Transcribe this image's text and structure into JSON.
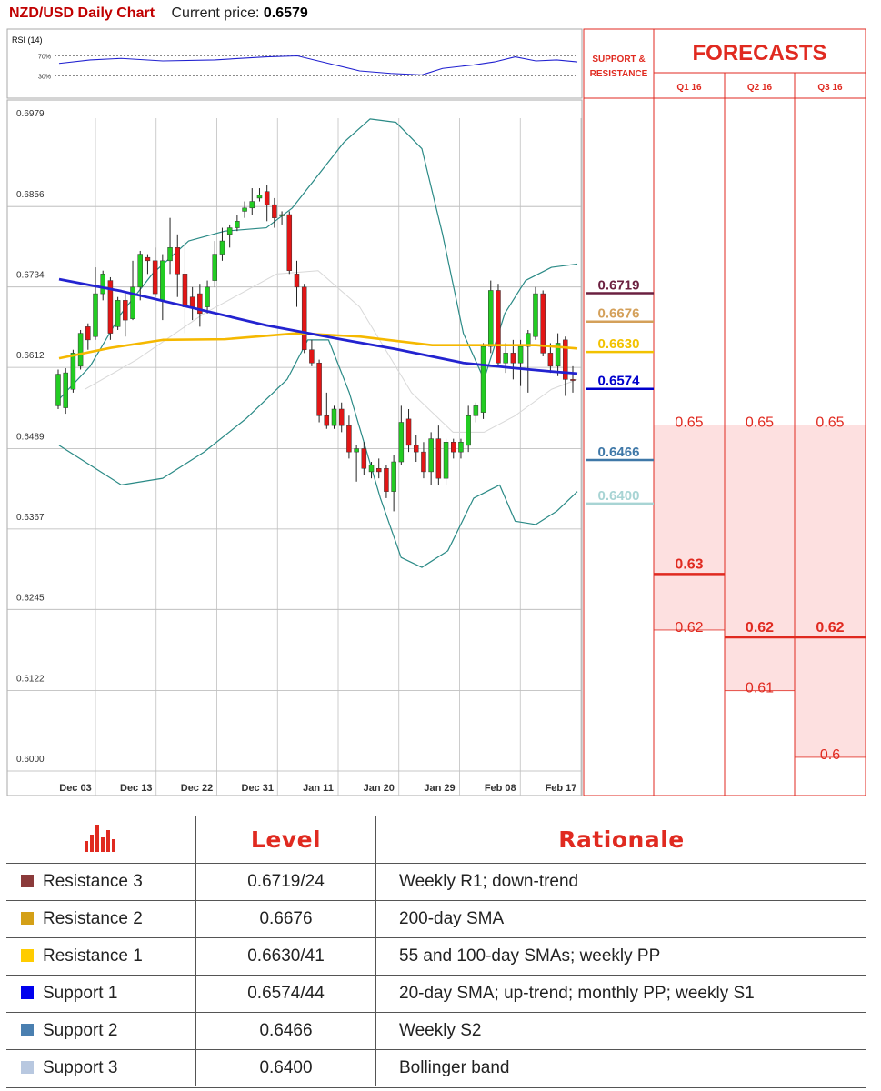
{
  "header": {
    "title": "NZD/USD Daily Chart",
    "price_label": "Current price:",
    "price_value": "0.6579"
  },
  "rsi": {
    "label": "RSI (14)",
    "upper_label": "70%",
    "lower_label": "30%"
  },
  "forecast_panel": {
    "sr_title_1": "SUPPORT &",
    "sr_title_2": "RESISTANCE",
    "title": "FORECASTS",
    "quarters": [
      "Q1 16",
      "Q2 16",
      "Q3 16"
    ]
  },
  "sr_levels": [
    {
      "name": "Resistance 3",
      "value": "0.6719",
      "num": 0.6719,
      "color": "#6b2040"
    },
    {
      "name": "Resistance 2",
      "value": "0.6676",
      "num": 0.6676,
      "color": "#d4a05a"
    },
    {
      "name": "Resistance 1",
      "value": "0.6630",
      "num": 0.663,
      "color": "#f2c200"
    },
    {
      "name": "Support 1",
      "value": "0.6574",
      "num": 0.6574,
      "color": "#0000cc"
    },
    {
      "name": "Support 2",
      "value": "0.6466",
      "num": 0.6466,
      "color": "#3f78a8"
    },
    {
      "name": "Support 3",
      "value": "0.6400",
      "num": 0.64,
      "color": "#a8d4d4"
    }
  ],
  "forecasts": [
    {
      "quarter": "Q1 16",
      "labels": [
        {
          "text": "0.65",
          "level": 0.6511,
          "bold": false
        },
        {
          "text": "0.63",
          "level": 0.6296,
          "bold": true
        },
        {
          "text": "0.62",
          "level": 0.62,
          "bold": false
        }
      ]
    },
    {
      "quarter": "Q2 16",
      "labels": [
        {
          "text": "0.65",
          "level": 0.6511,
          "bold": false
        },
        {
          "text": "0.62",
          "level": 0.62,
          "bold": true
        },
        {
          "text": "0.61",
          "level": 0.6108,
          "bold": false
        }
      ]
    },
    {
      "quarter": "Q3 16",
      "labels": [
        {
          "text": "0.65",
          "level": 0.6511,
          "bold": false
        },
        {
          "text": "0.62",
          "level": 0.62,
          "bold": true
        },
        {
          "text": "0.6",
          "level": 0.6007,
          "bold": false
        }
      ]
    }
  ],
  "forecast_boxes": [
    {
      "top": 0.6511,
      "bottom": 0.62,
      "mid": 0.6296
    },
    {
      "top": 0.6511,
      "bottom": 0.6108,
      "mid": 0.62
    },
    {
      "top": 0.6511,
      "bottom": 0.6007,
      "mid": 0.62
    }
  ],
  "chart_data": {
    "type": "candlestick",
    "title": "NZD/USD Daily Chart",
    "x_ticks": [
      "Dec 03",
      "Dec 13",
      "Dec 22",
      "Dec 31",
      "Jan 11",
      "Jan 20",
      "Jan 29",
      "Feb 08",
      "Feb 17"
    ],
    "y_ticks": [
      "0.6979",
      "0.6856",
      "0.6734",
      "0.6612",
      "0.6489",
      "0.6367",
      "0.6245",
      "0.6122",
      "0.6000"
    ],
    "ylim": [
      0.6,
      0.6979
    ],
    "grid": true,
    "candles": [
      [
        0.654,
        0.6588,
        0.6535,
        0.6595
      ],
      [
        0.6537,
        0.659,
        0.6528,
        0.6597
      ],
      [
        0.6565,
        0.662,
        0.656,
        0.6625
      ],
      [
        0.66,
        0.665,
        0.6595,
        0.6655
      ],
      [
        0.666,
        0.664,
        0.6625,
        0.6665
      ],
      [
        0.6645,
        0.671,
        0.664,
        0.675
      ],
      [
        0.671,
        0.674,
        0.67,
        0.6745
      ],
      [
        0.673,
        0.665,
        0.664,
        0.6735
      ],
      [
        0.666,
        0.67,
        0.6655,
        0.6705
      ],
      [
        0.67,
        0.667,
        0.6645,
        0.671
      ],
      [
        0.6672,
        0.672,
        0.667,
        0.676
      ],
      [
        0.672,
        0.677,
        0.67,
        0.6775
      ],
      [
        0.6765,
        0.676,
        0.674,
        0.677
      ],
      [
        0.676,
        0.671,
        0.6705,
        0.678
      ],
      [
        0.67,
        0.676,
        0.667,
        0.677
      ],
      [
        0.676,
        0.678,
        0.674,
        0.6825
      ],
      [
        0.678,
        0.674,
        0.6705,
        0.68
      ],
      [
        0.674,
        0.669,
        0.665,
        0.679
      ],
      [
        0.6705,
        0.669,
        0.667,
        0.672
      ],
      [
        0.671,
        0.668,
        0.666,
        0.6725
      ],
      [
        0.669,
        0.672,
        0.668,
        0.673
      ],
      [
        0.673,
        0.677,
        0.672,
        0.679
      ],
      [
        0.677,
        0.679,
        0.676,
        0.681
      ],
      [
        0.68,
        0.681,
        0.678,
        0.6815
      ],
      [
        0.681,
        0.682,
        0.6805,
        0.683
      ],
      [
        0.6835,
        0.684,
        0.6825,
        0.685
      ],
      [
        0.684,
        0.685,
        0.683,
        0.687
      ],
      [
        0.6855,
        0.686,
        0.685,
        0.687
      ],
      [
        0.6865,
        0.6845,
        0.682,
        0.6875
      ],
      [
        0.6845,
        0.6825,
        0.681,
        0.6855
      ],
      [
        0.6828,
        0.683,
        0.6815,
        0.6835
      ],
      [
        0.683,
        0.6745,
        0.674,
        0.6835
      ],
      [
        0.674,
        0.672,
        0.669,
        0.676
      ],
      [
        0.672,
        0.6625,
        0.662,
        0.6725
      ],
      [
        0.6625,
        0.6605,
        0.66,
        0.664
      ],
      [
        0.6605,
        0.6525,
        0.6515,
        0.661
      ],
      [
        0.6525,
        0.651,
        0.6505,
        0.656
      ],
      [
        0.651,
        0.6535,
        0.6505,
        0.654
      ],
      [
        0.6535,
        0.651,
        0.65,
        0.6545
      ],
      [
        0.651,
        0.647,
        0.646,
        0.6525
      ],
      [
        0.647,
        0.6475,
        0.6425,
        0.648
      ],
      [
        0.6475,
        0.6445,
        0.6435,
        0.6485
      ],
      [
        0.644,
        0.645,
        0.643,
        0.6455
      ],
      [
        0.6445,
        0.644,
        0.643,
        0.646
      ],
      [
        0.6445,
        0.641,
        0.64,
        0.645
      ],
      [
        0.641,
        0.6455,
        0.638,
        0.6465
      ],
      [
        0.6455,
        0.6515,
        0.645,
        0.654
      ],
      [
        0.652,
        0.648,
        0.647,
        0.6535
      ],
      [
        0.648,
        0.647,
        0.6455,
        0.6495
      ],
      [
        0.647,
        0.644,
        0.643,
        0.6485
      ],
      [
        0.644,
        0.649,
        0.642,
        0.65
      ],
      [
        0.649,
        0.643,
        0.642,
        0.651
      ],
      [
        0.643,
        0.6485,
        0.642,
        0.649
      ],
      [
        0.6485,
        0.647,
        0.646,
        0.649
      ],
      [
        0.647,
        0.6485,
        0.646,
        0.649
      ],
      [
        0.648,
        0.6525,
        0.647,
        0.654
      ],
      [
        0.6525,
        0.654,
        0.6515,
        0.6545
      ],
      [
        0.653,
        0.663,
        0.652,
        0.6635
      ],
      [
        0.663,
        0.6715,
        0.662,
        0.673
      ],
      [
        0.6715,
        0.6605,
        0.66,
        0.6725
      ],
      [
        0.6605,
        0.662,
        0.659,
        0.6635
      ],
      [
        0.662,
        0.6605,
        0.658,
        0.664
      ],
      [
        0.6605,
        0.663,
        0.657,
        0.664
      ],
      [
        0.663,
        0.665,
        0.656,
        0.6655
      ],
      [
        0.6645,
        0.671,
        0.664,
        0.672
      ],
      [
        0.671,
        0.662,
        0.6615,
        0.6715
      ],
      [
        0.662,
        0.66,
        0.659,
        0.6635
      ],
      [
        0.66,
        0.6635,
        0.6585,
        0.665
      ],
      [
        0.664,
        0.658,
        0.6555,
        0.6645
      ],
      [
        0.658,
        0.6579,
        0.656,
        0.66
      ]
    ],
    "sma_blue": [
      [
        0,
        0.6732
      ],
      [
        0.12,
        0.6714
      ],
      [
        0.25,
        0.669
      ],
      [
        0.4,
        0.6662
      ],
      [
        0.55,
        0.664
      ],
      [
        0.65,
        0.6626
      ],
      [
        0.78,
        0.6605
      ],
      [
        0.88,
        0.6597
      ],
      [
        0.95,
        0.6592
      ],
      [
        1,
        0.6589
      ]
    ],
    "sma_gold": [
      [
        0,
        0.6612
      ],
      [
        0.1,
        0.6628
      ],
      [
        0.2,
        0.664
      ],
      [
        0.32,
        0.6641
      ],
      [
        0.46,
        0.665
      ],
      [
        0.58,
        0.6645
      ],
      [
        0.72,
        0.6632
      ],
      [
        0.82,
        0.6632
      ],
      [
        0.92,
        0.6632
      ],
      [
        1,
        0.6627
      ]
    ],
    "sma_grey": [
      [
        0.05,
        0.6565
      ],
      [
        0.15,
        0.661
      ],
      [
        0.28,
        0.668
      ],
      [
        0.42,
        0.674
      ],
      [
        0.5,
        0.6745
      ],
      [
        0.58,
        0.669
      ],
      [
        0.68,
        0.656
      ],
      [
        0.76,
        0.65
      ],
      [
        0.82,
        0.65
      ],
      [
        0.88,
        0.6525
      ],
      [
        0.95,
        0.6565
      ],
      [
        1,
        0.658
      ]
    ],
    "bb_upper": [
      [
        0,
        0.655
      ],
      [
        0.06,
        0.66
      ],
      [
        0.12,
        0.668
      ],
      [
        0.18,
        0.674
      ],
      [
        0.25,
        0.679
      ],
      [
        0.32,
        0.6805
      ],
      [
        0.4,
        0.681
      ],
      [
        0.45,
        0.684
      ],
      [
        0.5,
        0.689
      ],
      [
        0.55,
        0.694
      ],
      [
        0.6,
        0.6975
      ],
      [
        0.65,
        0.697
      ],
      [
        0.7,
        0.693
      ],
      [
        0.74,
        0.68
      ],
      [
        0.78,
        0.665
      ],
      [
        0.82,
        0.658
      ],
      [
        0.86,
        0.668
      ],
      [
        0.9,
        0.673
      ],
      [
        0.95,
        0.675
      ],
      [
        1,
        0.6755
      ]
    ],
    "bb_lower": [
      [
        0,
        0.648
      ],
      [
        0.06,
        0.645
      ],
      [
        0.12,
        0.642
      ],
      [
        0.2,
        0.643
      ],
      [
        0.28,
        0.647
      ],
      [
        0.36,
        0.652
      ],
      [
        0.44,
        0.658
      ],
      [
        0.48,
        0.664
      ],
      [
        0.52,
        0.664
      ],
      [
        0.56,
        0.656
      ],
      [
        0.62,
        0.64
      ],
      [
        0.66,
        0.631
      ],
      [
        0.7,
        0.6295
      ],
      [
        0.75,
        0.632
      ],
      [
        0.8,
        0.64
      ],
      [
        0.85,
        0.642
      ],
      [
        0.88,
        0.6365
      ],
      [
        0.92,
        0.636
      ],
      [
        0.96,
        0.638
      ],
      [
        1,
        0.641
      ]
    ],
    "rsi_path": [
      [
        0,
        55
      ],
      [
        0.06,
        62
      ],
      [
        0.12,
        65
      ],
      [
        0.2,
        60
      ],
      [
        0.3,
        62
      ],
      [
        0.4,
        68
      ],
      [
        0.46,
        70
      ],
      [
        0.52,
        55
      ],
      [
        0.58,
        40
      ],
      [
        0.64,
        35
      ],
      [
        0.7,
        32
      ],
      [
        0.74,
        45
      ],
      [
        0.8,
        52
      ],
      [
        0.84,
        58
      ],
      [
        0.88,
        68
      ],
      [
        0.92,
        60
      ],
      [
        0.96,
        62
      ],
      [
        1,
        58
      ]
    ]
  },
  "table": {
    "headers": {
      "level": "Level",
      "rationale": "Rationale"
    },
    "rows": [
      {
        "name": "Resistance 3",
        "level": "0.6719/24",
        "rationale": "Weekly R1; down-trend",
        "color": "#8b3a3a"
      },
      {
        "name": "Resistance 2",
        "level": "0.6676",
        "rationale": "200-day SMA",
        "color": "#d4a017"
      },
      {
        "name": "Resistance 1",
        "level": "0.6630/41",
        "rationale": "55 and 100-day SMAs; weekly PP",
        "color": "#ffcc00"
      },
      {
        "name": "Support 1",
        "level": "0.6574/44",
        "rationale": "20-day SMA; up-trend; monthly PP; weekly S1",
        "color": "#0000ee"
      },
      {
        "name": "Support 2",
        "level": "0.6466",
        "rationale": "Weekly S2",
        "color": "#4a7fb0"
      },
      {
        "name": "Support 3",
        "level": "0.6400",
        "rationale": "Bollinger band",
        "color": "#b8c8e0"
      }
    ]
  }
}
